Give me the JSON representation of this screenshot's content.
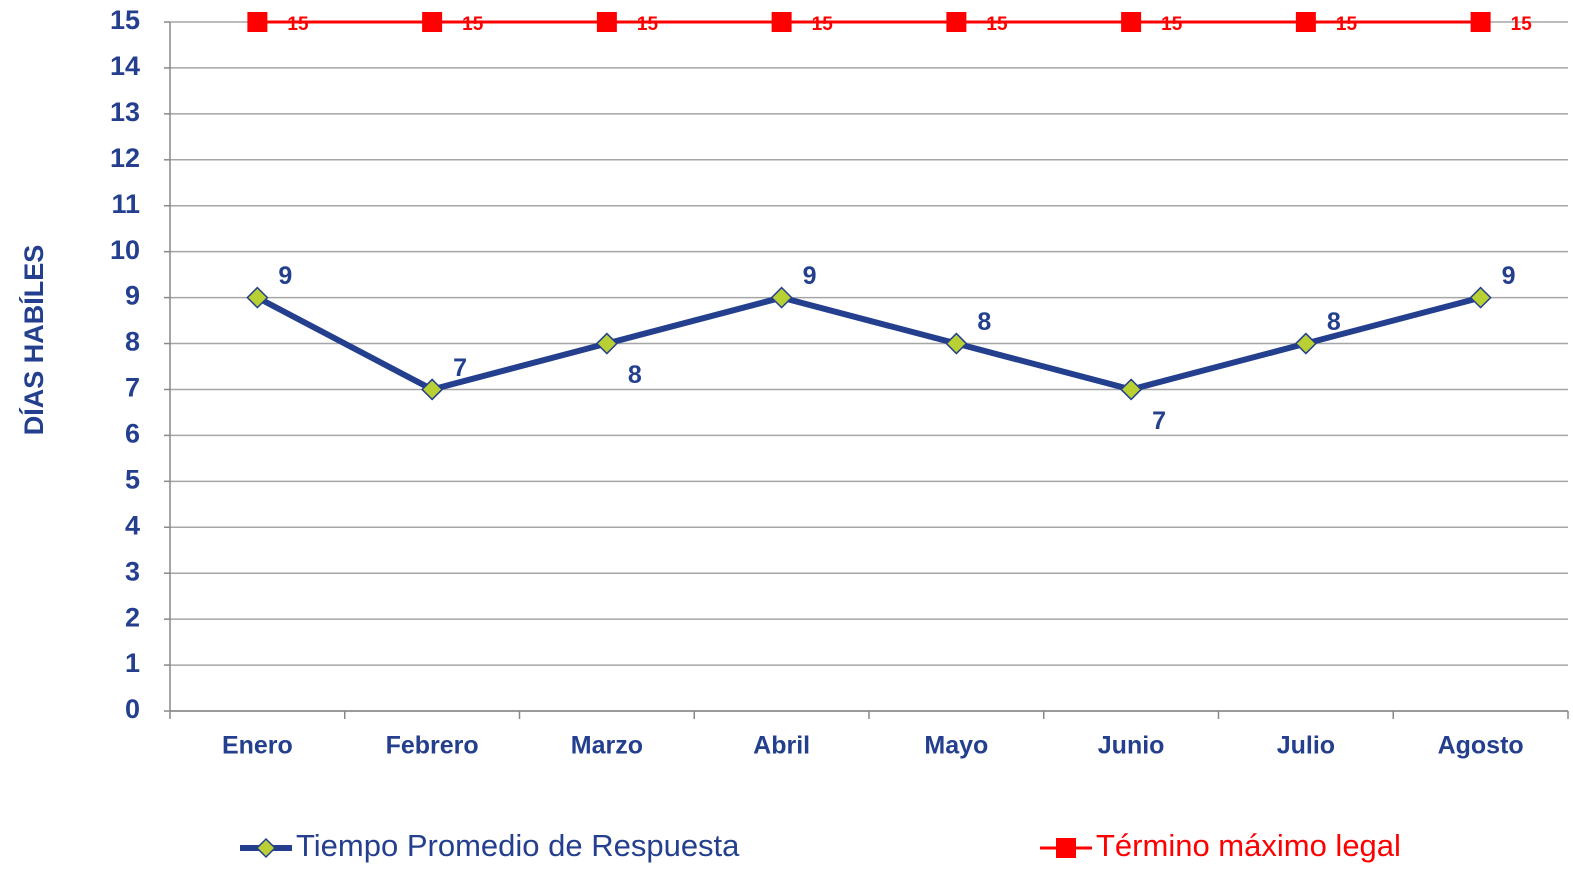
{
  "chart_data": {
    "type": "line",
    "y_label": "DÍAS HABÍLES",
    "categories": [
      "Enero",
      "Febrero",
      "Marzo",
      "Abril",
      "Mayo",
      "Junio",
      "Julio",
      "Agosto"
    ],
    "series": [
      {
        "name": "Tiempo Promedio de Respuesta",
        "color": "#233f8e",
        "marker_color": "#b8d034",
        "values": [
          9,
          7,
          8,
          9,
          8,
          7,
          8,
          9
        ]
      },
      {
        "name": "Término máximo legal",
        "color": "#ff0000",
        "marker_color": "#ff0000",
        "values": [
          15,
          15,
          15,
          15,
          15,
          15,
          15,
          15
        ]
      }
    ],
    "ylim": [
      0,
      15
    ],
    "yticks": [
      0,
      1,
      2,
      3,
      4,
      5,
      6,
      7,
      8,
      9,
      10,
      11,
      12,
      13,
      14,
      15
    ],
    "grid": true,
    "legend": "bottom"
  }
}
